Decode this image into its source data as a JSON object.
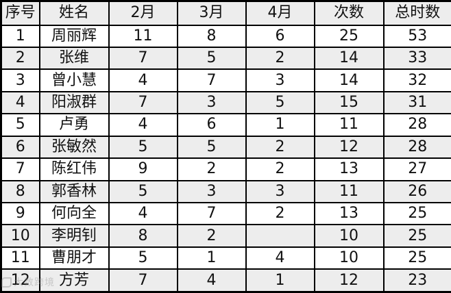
{
  "table": {
    "columns": [
      "序号",
      "姓名",
      "2月",
      "3月",
      "4月",
      "次数",
      "总时数"
    ],
    "rows": [
      [
        "1",
        "周丽辉",
        "11",
        "8",
        "6",
        "25",
        "53"
      ],
      [
        "2",
        "张维",
        "7",
        "5",
        "2",
        "14",
        "33"
      ],
      [
        "3",
        "曾小慧",
        "4",
        "7",
        "3",
        "14",
        "32"
      ],
      [
        "4",
        "阳淑群",
        "7",
        "3",
        "5",
        "15",
        "31"
      ],
      [
        "5",
        "卢勇",
        "4",
        "6",
        "1",
        "11",
        "28"
      ],
      [
        "6",
        "张敏然",
        "5",
        "5",
        "2",
        "12",
        "28"
      ],
      [
        "7",
        "陈红伟",
        "9",
        "2",
        "2",
        "13",
        "27"
      ],
      [
        "8",
        "郭香林",
        "5",
        "3",
        "3",
        "11",
        "26"
      ],
      [
        "9",
        "何向全",
        "4",
        "7",
        "2",
        "13",
        "25"
      ],
      [
        "10",
        "李明钊",
        "8",
        "2",
        "",
        "10",
        "25"
      ],
      [
        "11",
        "曹朋才",
        "5",
        "1",
        "4",
        "10",
        "25"
      ],
      [
        "12",
        "方芳",
        "7",
        "4",
        "1",
        "12",
        "23"
      ]
    ]
  },
  "watermark": {
    "text": "大数跨境"
  },
  "colors": {
    "stripe": "#ededed",
    "border": "#000000",
    "text": "#111111"
  }
}
